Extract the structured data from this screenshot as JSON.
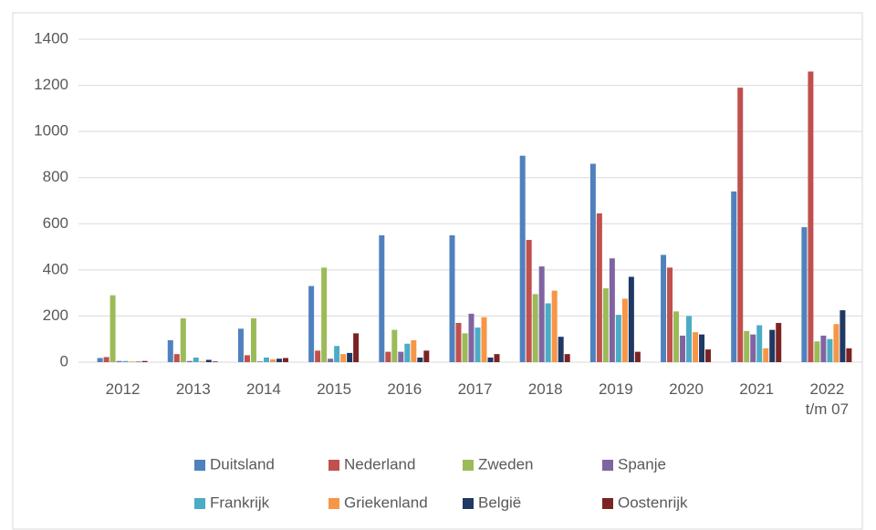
{
  "chart_data": {
    "type": "bar",
    "categories": [
      "2012",
      "2013",
      "2014",
      "2015",
      "2016",
      "2017",
      "2018",
      "2019",
      "2020",
      "2021",
      "2022\nt/m 07"
    ],
    "series": [
      {
        "name": "Duitsland",
        "color": "#4f81bd",
        "values": [
          18,
          95,
          145,
          330,
          550,
          550,
          895,
          860,
          465,
          740,
          585
        ]
      },
      {
        "name": "Nederland",
        "color": "#c0504d",
        "values": [
          22,
          35,
          30,
          50,
          45,
          170,
          530,
          645,
          410,
          1190,
          1260
        ]
      },
      {
        "name": "Zweden",
        "color": "#9bbb59",
        "values": [
          290,
          190,
          190,
          410,
          140,
          125,
          295,
          320,
          220,
          135,
          90
        ]
      },
      {
        "name": "Spanje",
        "color": "#8064a2",
        "values": [
          5,
          5,
          3,
          15,
          45,
          210,
          415,
          450,
          115,
          120,
          115
        ]
      },
      {
        "name": "Frankrijk",
        "color": "#4bacc6",
        "values": [
          5,
          20,
          20,
          70,
          80,
          150,
          255,
          205,
          200,
          160,
          100
        ]
      },
      {
        "name": "Griekenland",
        "color": "#f79646",
        "values": [
          3,
          3,
          12,
          35,
          95,
          195,
          310,
          275,
          130,
          60,
          165
        ]
      },
      {
        "name": "België",
        "color": "#1f3864",
        "values": [
          2,
          10,
          15,
          40,
          20,
          20,
          110,
          370,
          120,
          140,
          225
        ]
      },
      {
        "name": "Oostenrijk",
        "color": "#7b2323",
        "values": [
          5,
          3,
          18,
          125,
          50,
          35,
          35,
          45,
          55,
          170,
          60
        ]
      }
    ],
    "ylim": [
      0,
      1400
    ],
    "yticks": [
      0,
      200,
      400,
      600,
      800,
      1000,
      1200,
      1400
    ],
    "grid": true
  }
}
